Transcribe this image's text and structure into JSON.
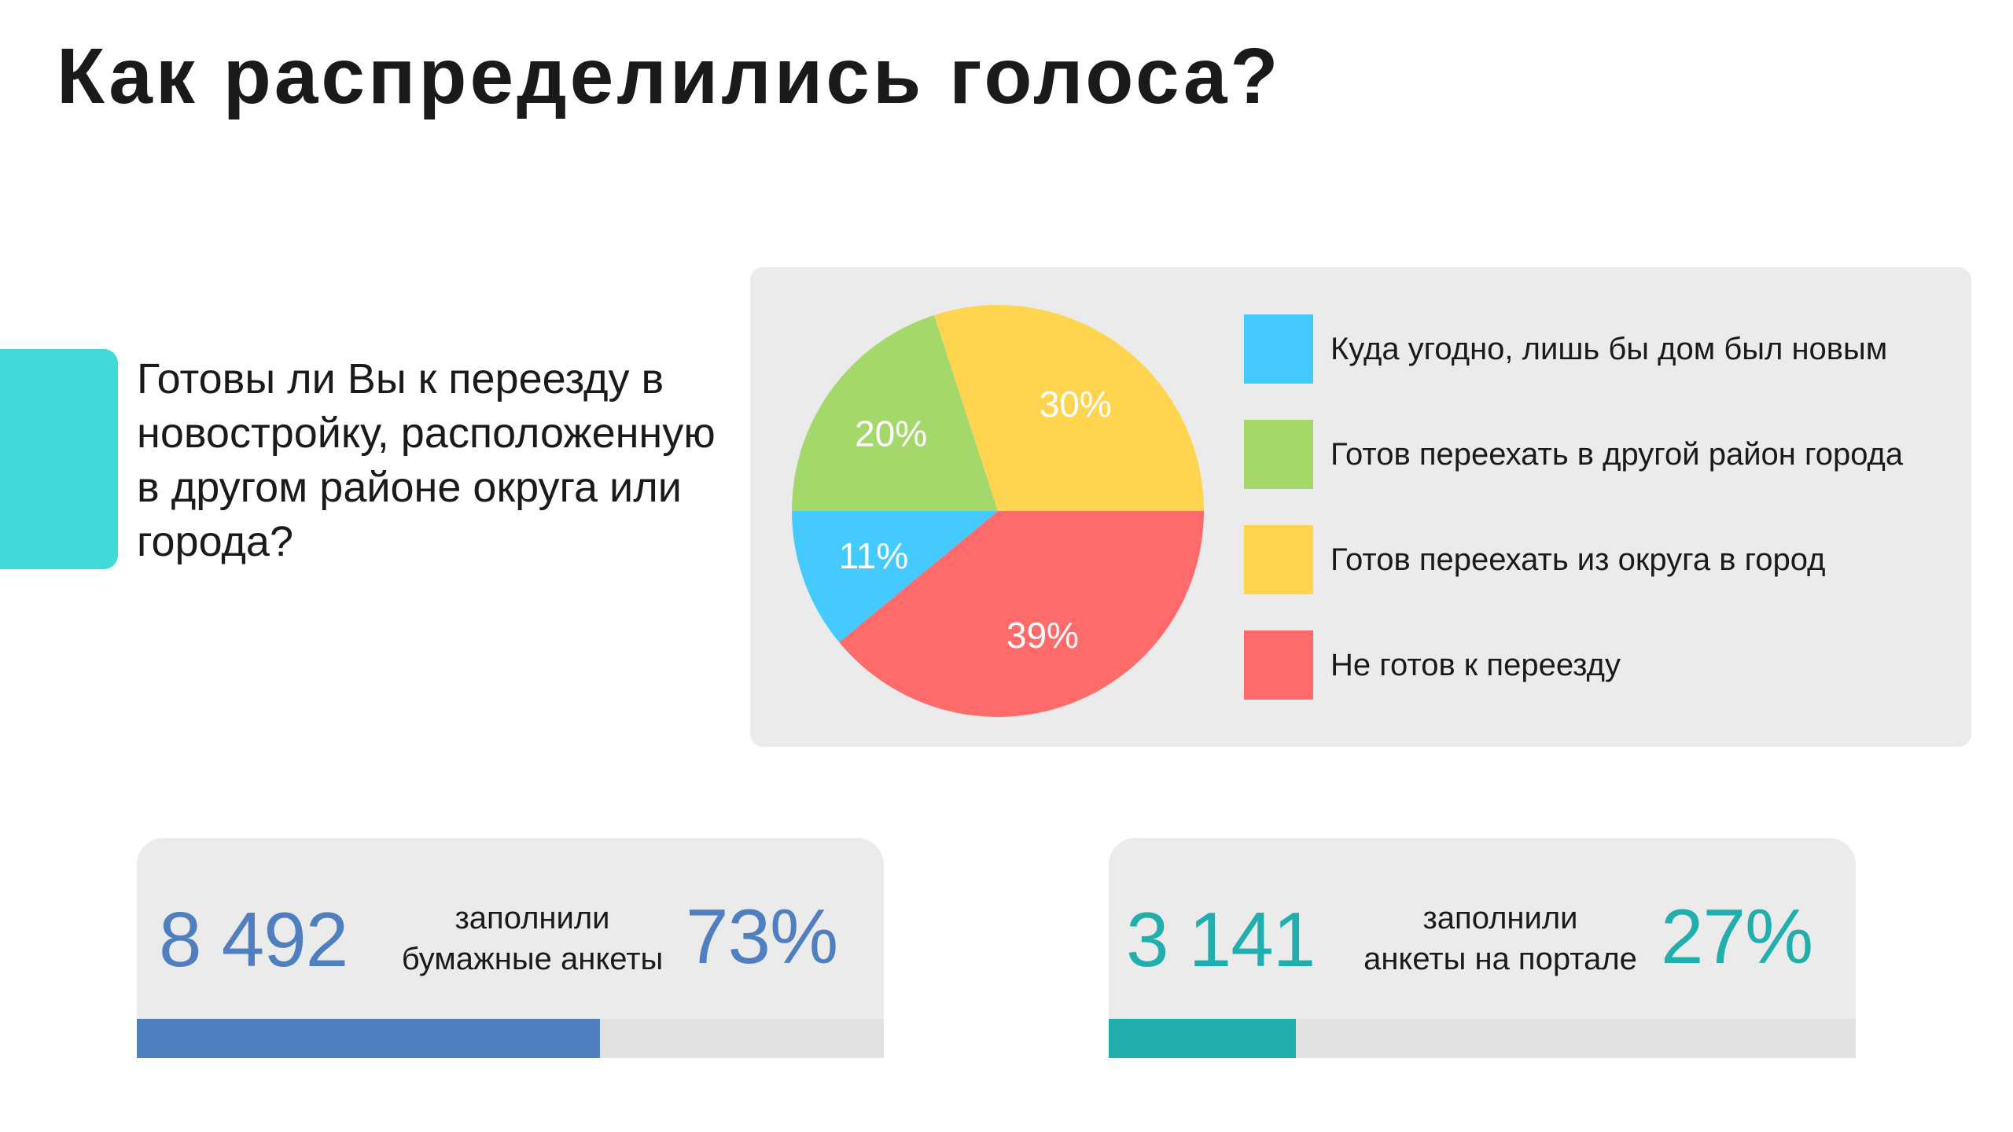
{
  "page": {
    "title": "Как распределились голоса?",
    "question": "Готовы ли Вы к переезду в новостройку, расположенную в другом районе округа или города?",
    "accent_color": "#40dbd9"
  },
  "chart_data": {
    "type": "pie",
    "title": "",
    "start_angle_deg": 90,
    "direction": "clockwise",
    "legend_position": "right",
    "slices": [
      {
        "label": "Не готов к переезду",
        "value": 39,
        "display": "39%",
        "color": "#ff6b6b"
      },
      {
        "label": "Куда угодно, лишь бы дом был новым",
        "value": 11,
        "display": "11%",
        "color": "#45caff"
      },
      {
        "label": "Готов переехать в другой район города",
        "value": 20,
        "display": "20%",
        "color": "#a5d86a"
      },
      {
        "label": "Готов переехать из округа в город",
        "value": 30,
        "display": "30%",
        "color": "#ffd54f"
      }
    ],
    "legend": [
      {
        "label": "Куда угодно, лишь бы дом был новым",
        "color": "#45caff"
      },
      {
        "label": "Готов переехать в другой район города",
        "color": "#a5d86a"
      },
      {
        "label": "Готов переехать из округа в город",
        "color": "#ffd54f"
      },
      {
        "label": "Не готов к переезду",
        "color": "#ff6b6b"
      }
    ]
  },
  "stats": {
    "paper": {
      "number": "8 492",
      "label_line1": "заполнили",
      "label_line2": "бумажные анкеты",
      "percent_text": "73%",
      "percent_value": 73,
      "progress_fraction": 0.62,
      "color": "#4f7fbf"
    },
    "portal": {
      "number": "3 141",
      "label_line1": "заполнили",
      "label_line2": "анкеты на портале",
      "percent_text": "27%",
      "percent_value": 27,
      "progress_fraction": 0.25,
      "color": "#20afad"
    }
  }
}
